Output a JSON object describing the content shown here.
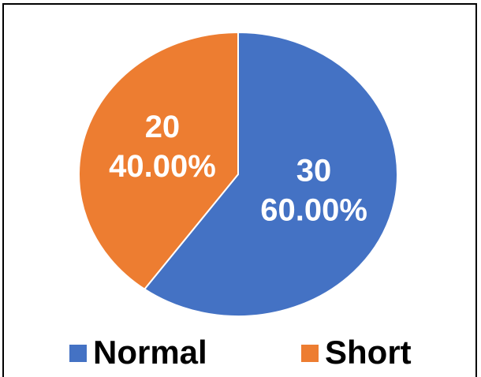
{
  "chart_data": {
    "type": "pie",
    "categories": [
      "Normal",
      "Short"
    ],
    "values": [
      30,
      20
    ],
    "value_labels": [
      "30",
      "20"
    ],
    "percent_labels": [
      "60.00%",
      "40.00%"
    ],
    "colors": [
      "#4472c4",
      "#ed7d31"
    ],
    "legend": "bottom"
  }
}
